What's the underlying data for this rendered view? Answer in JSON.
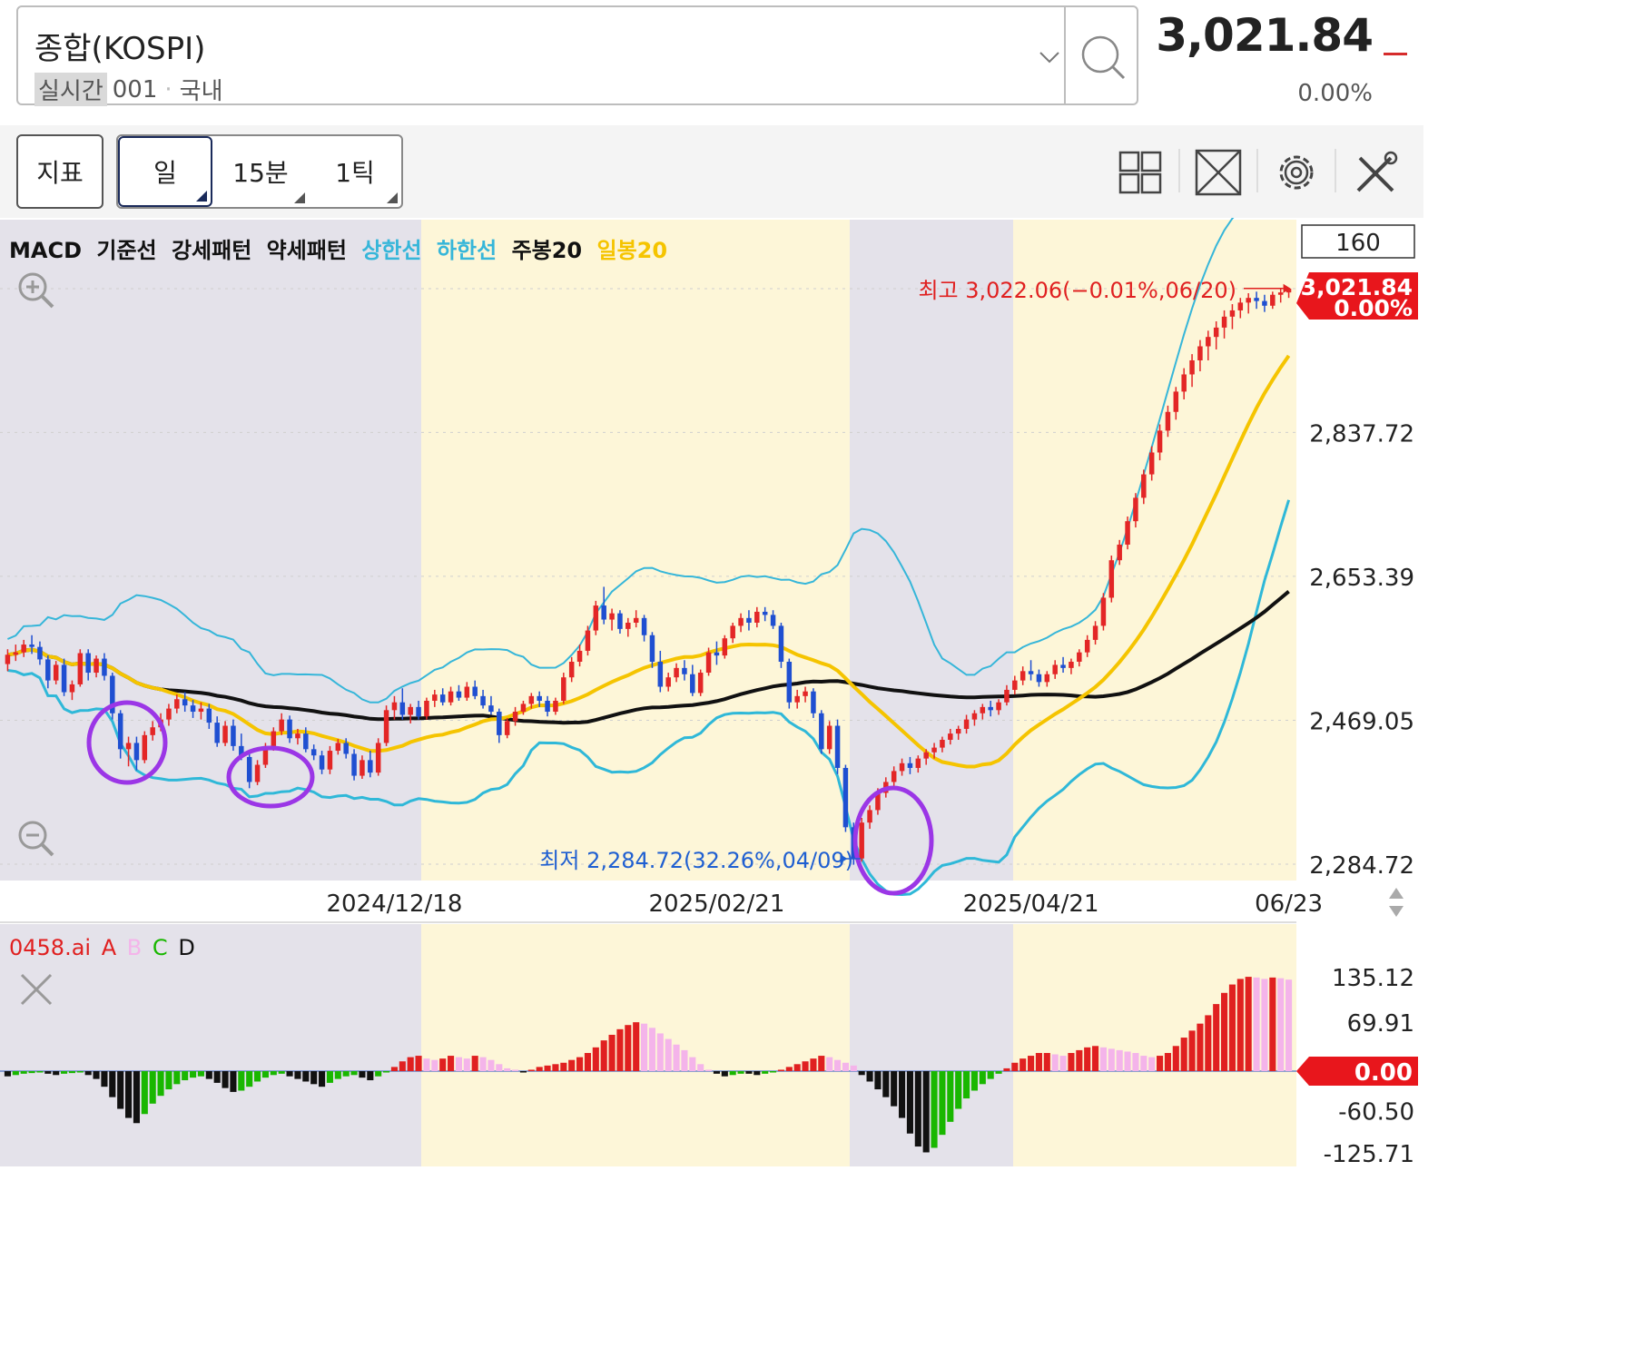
{
  "symbol": {
    "name": "종합(KOSPI)",
    "realtime_label": "실시간",
    "code": "001",
    "market": "국내",
    "price": "3,021.84",
    "change_pct": "0.00%"
  },
  "toolbar": {
    "indicator_label": "지표",
    "timeframes": [
      {
        "label": "일",
        "selected": true
      },
      {
        "label": "15분",
        "selected": false
      },
      {
        "label": "1틱",
        "selected": false
      }
    ],
    "tools": [
      "grid-layout-icon",
      "fullscreen-icon",
      "settings-gear-icon",
      "tools-icon"
    ]
  },
  "legend": [
    {
      "label": "MACD",
      "color": "#111111"
    },
    {
      "label": "기준선",
      "color": "#111111"
    },
    {
      "label": "강세패턴",
      "color": "#111111"
    },
    {
      "label": "약세패턴",
      "color": "#111111"
    },
    {
      "label": "상한선",
      "color": "#36b6d9"
    },
    {
      "label": "하한선",
      "color": "#36b6d9"
    },
    {
      "label": "주봉20",
      "color": "#111111"
    },
    {
      "label": "일봉20",
      "color": "#f5c400"
    }
  ],
  "sub_legend": [
    {
      "label": "0458.ai",
      "color": "#e02020"
    },
    {
      "label": "A",
      "color": "#e02020"
    },
    {
      "label": "B",
      "color": "#f4b4ea"
    },
    {
      "label": "C",
      "color": "#19b700"
    },
    {
      "label": "D",
      "color": "#111111"
    }
  ],
  "chart_data": [
    {
      "type": "candlestick",
      "view_count_label": "160",
      "y_ticks": [
        2837.72,
        2653.39,
        2469.05,
        2284.72
      ],
      "y_tick_labels": [
        "2,837.72",
        "2,653.39",
        "2,469.05",
        "2,284.72"
      ],
      "ylim": [
        2284.72,
        3021.84
      ],
      "x_tick_labels": [
        {
          "label": "2024/12/18",
          "index": 48
        },
        {
          "label": "2025/02/21",
          "index": 88
        },
        {
          "label": "2025/04/21",
          "index": 127
        },
        {
          "label": "06/23",
          "index": 159
        }
      ],
      "last_price": {
        "label": "3,021.84",
        "pct": "0.00%",
        "value": 3021.84
      },
      "high_annotation": {
        "text": "최고 3,022.06(−0.01%,06/20)",
        "value": 3022.06
      },
      "low_annotation": {
        "text": "최저 2,284.72(32.26%,04/09)",
        "value": 2284.72
      },
      "colors": {
        "up": "#e32626",
        "down": "#1f4fd1",
        "weekly20": "#111111",
        "daily20": "#f5c400",
        "band": "#36b6d9",
        "band_low": "#2fb8d8",
        "shade_gray": "#e4e2ea",
        "shade_yellow": "#fdf6d8",
        "circle": "#9b36e6"
      },
      "ohlc": [
        [
          2541,
          2560,
          2532,
          2553
        ],
        [
          2553,
          2566,
          2545,
          2556
        ],
        [
          2556,
          2572,
          2550,
          2566
        ],
        [
          2566,
          2578,
          2554,
          2563
        ],
        [
          2563,
          2570,
          2540,
          2547
        ],
        [
          2547,
          2552,
          2510,
          2520
        ],
        [
          2520,
          2545,
          2515,
          2540
        ],
        [
          2540,
          2548,
          2500,
          2505
        ],
        [
          2505,
          2520,
          2495,
          2515
        ],
        [
          2515,
          2560,
          2512,
          2555
        ],
        [
          2555,
          2560,
          2520,
          2530
        ],
        [
          2530,
          2552,
          2524,
          2548
        ],
        [
          2548,
          2555,
          2520,
          2526
        ],
        [
          2526,
          2530,
          2470,
          2478
        ],
        [
          2478,
          2482,
          2420,
          2432
        ],
        [
          2432,
          2448,
          2410,
          2440
        ],
        [
          2440,
          2448,
          2405,
          2418
        ],
        [
          2418,
          2455,
          2414,
          2450
        ],
        [
          2450,
          2468,
          2443,
          2460
        ],
        [
          2460,
          2478,
          2455,
          2470
        ],
        [
          2470,
          2490,
          2462,
          2484
        ],
        [
          2484,
          2502,
          2478,
          2496
        ],
        [
          2496,
          2505,
          2480,
          2488
        ],
        [
          2488,
          2495,
          2472,
          2480
        ],
        [
          2480,
          2492,
          2470,
          2484
        ],
        [
          2484,
          2490,
          2458,
          2466
        ],
        [
          2466,
          2474,
          2435,
          2440
        ],
        [
          2440,
          2468,
          2436,
          2462
        ],
        [
          2462,
          2470,
          2430,
          2436
        ],
        [
          2436,
          2452,
          2418,
          2422
        ],
        [
          2422,
          2428,
          2382,
          2390
        ],
        [
          2390,
          2418,
          2386,
          2412
        ],
        [
          2412,
          2440,
          2408,
          2436
        ],
        [
          2436,
          2460,
          2430,
          2455
        ],
        [
          2455,
          2478,
          2450,
          2470
        ],
        [
          2470,
          2475,
          2440,
          2446
        ],
        [
          2446,
          2458,
          2438,
          2452
        ],
        [
          2452,
          2460,
          2428,
          2432
        ],
        [
          2432,
          2438,
          2418,
          2424
        ],
        [
          2424,
          2430,
          2400,
          2406
        ],
        [
          2406,
          2436,
          2400,
          2430
        ],
        [
          2430,
          2445,
          2425,
          2440
        ],
        [
          2440,
          2446,
          2420,
          2426
        ],
        [
          2426,
          2432,
          2392,
          2398
        ],
        [
          2398,
          2424,
          2394,
          2418
        ],
        [
          2418,
          2430,
          2396,
          2402
        ],
        [
          2402,
          2446,
          2398,
          2440
        ],
        [
          2440,
          2488,
          2436,
          2482
        ],
        [
          2482,
          2500,
          2470,
          2492
        ],
        [
          2492,
          2510,
          2470,
          2476
        ],
        [
          2476,
          2490,
          2465,
          2486
        ],
        [
          2486,
          2494,
          2470,
          2474
        ],
        [
          2474,
          2498,
          2470,
          2494
        ],
        [
          2494,
          2508,
          2486,
          2502
        ],
        [
          2502,
          2510,
          2488,
          2492
        ],
        [
          2492,
          2512,
          2488,
          2506
        ],
        [
          2506,
          2514,
          2494,
          2498
        ],
        [
          2498,
          2518,
          2494,
          2512
        ],
        [
          2512,
          2520,
          2496,
          2500
        ],
        [
          2500,
          2508,
          2484,
          2488
        ],
        [
          2488,
          2500,
          2476,
          2480
        ],
        [
          2480,
          2484,
          2440,
          2450
        ],
        [
          2450,
          2472,
          2446,
          2468
        ],
        [
          2468,
          2486,
          2462,
          2480
        ],
        [
          2480,
          2494,
          2476,
          2490
        ],
        [
          2490,
          2504,
          2484,
          2500
        ],
        [
          2500,
          2506,
          2486,
          2494
        ],
        [
          2494,
          2500,
          2474,
          2480
        ],
        [
          2480,
          2498,
          2476,
          2494
        ],
        [
          2494,
          2530,
          2490,
          2524
        ],
        [
          2524,
          2550,
          2518,
          2544
        ],
        [
          2544,
          2566,
          2538,
          2558
        ],
        [
          2558,
          2590,
          2552,
          2584
        ],
        [
          2584,
          2622,
          2578,
          2616
        ],
        [
          2616,
          2640,
          2592,
          2598
        ],
        [
          2598,
          2612,
          2584,
          2606
        ],
        [
          2606,
          2610,
          2580,
          2586
        ],
        [
          2586,
          2600,
          2576,
          2594
        ],
        [
          2594,
          2610,
          2588,
          2600
        ],
        [
          2600,
          2604,
          2570,
          2578
        ],
        [
          2578,
          2582,
          2536,
          2544
        ],
        [
          2544,
          2558,
          2505,
          2512
        ],
        [
          2512,
          2530,
          2506,
          2524
        ],
        [
          2524,
          2542,
          2518,
          2536
        ],
        [
          2536,
          2546,
          2520,
          2528
        ],
        [
          2528,
          2540,
          2500,
          2504
        ],
        [
          2504,
          2534,
          2500,
          2530
        ],
        [
          2530,
          2562,
          2526,
          2556
        ],
        [
          2556,
          2570,
          2540,
          2552
        ],
        [
          2552,
          2578,
          2548,
          2574
        ],
        [
          2574,
          2594,
          2568,
          2590
        ],
        [
          2590,
          2606,
          2582,
          2600
        ],
        [
          2600,
          2610,
          2584,
          2594
        ],
        [
          2594,
          2614,
          2588,
          2608
        ],
        [
          2608,
          2614,
          2596,
          2604
        ],
        [
          2604,
          2610,
          2586,
          2590
        ],
        [
          2590,
          2594,
          2536,
          2544
        ],
        [
          2544,
          2548,
          2484,
          2492
        ],
        [
          2492,
          2508,
          2484,
          2500
        ],
        [
          2500,
          2512,
          2492,
          2506
        ],
        [
          2506,
          2510,
          2472,
          2478
        ],
        [
          2478,
          2482,
          2426,
          2432
        ],
        [
          2432,
          2468,
          2426,
          2462
        ],
        [
          2462,
          2470,
          2400,
          2408
        ],
        [
          2408,
          2412,
          2326,
          2332
        ],
        [
          2332,
          2338,
          2284,
          2292
        ],
        [
          2292,
          2344,
          2288,
          2338
        ],
        [
          2338,
          2360,
          2330,
          2354
        ],
        [
          2354,
          2382,
          2348,
          2376
        ],
        [
          2376,
          2396,
          2370,
          2390
        ],
        [
          2390,
          2410,
          2384,
          2404
        ],
        [
          2404,
          2420,
          2398,
          2414
        ],
        [
          2414,
          2422,
          2400,
          2408
        ],
        [
          2408,
          2424,
          2402,
          2420
        ],
        [
          2420,
          2432,
          2412,
          2428
        ],
        [
          2428,
          2440,
          2420,
          2434
        ],
        [
          2434,
          2448,
          2428,
          2444
        ],
        [
          2444,
          2458,
          2438,
          2452
        ],
        [
          2452,
          2462,
          2444,
          2458
        ],
        [
          2458,
          2476,
          2452,
          2470
        ],
        [
          2470,
          2482,
          2462,
          2478
        ],
        [
          2478,
          2490,
          2470,
          2486
        ],
        [
          2486,
          2494,
          2474,
          2482
        ],
        [
          2482,
          2496,
          2476,
          2492
        ],
        [
          2492,
          2514,
          2488,
          2508
        ],
        [
          2508,
          2526,
          2502,
          2520
        ],
        [
          2520,
          2538,
          2514,
          2532
        ],
        [
          2532,
          2546,
          2520,
          2528
        ],
        [
          2528,
          2534,
          2512,
          2518
        ],
        [
          2518,
          2532,
          2512,
          2528
        ],
        [
          2528,
          2546,
          2522,
          2540
        ],
        [
          2540,
          2550,
          2530,
          2536
        ],
        [
          2536,
          2548,
          2528,
          2544
        ],
        [
          2544,
          2560,
          2538,
          2556
        ],
        [
          2556,
          2578,
          2550,
          2572
        ],
        [
          2572,
          2596,
          2566,
          2590
        ],
        [
          2590,
          2632,
          2584,
          2626
        ],
        [
          2626,
          2680,
          2620,
          2674
        ],
        [
          2674,
          2700,
          2668,
          2694
        ],
        [
          2694,
          2730,
          2688,
          2724
        ],
        [
          2724,
          2760,
          2716,
          2754
        ],
        [
          2754,
          2790,
          2746,
          2784
        ],
        [
          2784,
          2820,
          2776,
          2812
        ],
        [
          2812,
          2848,
          2802,
          2840
        ],
        [
          2840,
          2872,
          2832,
          2864
        ],
        [
          2864,
          2896,
          2854,
          2890
        ],
        [
          2890,
          2920,
          2880,
          2912
        ],
        [
          2912,
          2938,
          2896,
          2930
        ],
        [
          2930,
          2956,
          2916,
          2948
        ],
        [
          2948,
          2968,
          2930,
          2960
        ],
        [
          2960,
          2980,
          2944,
          2972
        ],
        [
          2972,
          2994,
          2958,
          2986
        ],
        [
          2986,
          3002,
          2970,
          2994
        ],
        [
          2994,
          3010,
          2984,
          3004
        ],
        [
          3004,
          3016,
          2990,
          3010
        ],
        [
          3010,
          3018,
          2996,
          3006
        ],
        [
          3006,
          3014,
          2992,
          3000
        ],
        [
          3000,
          3018,
          2996,
          3014
        ],
        [
          3014,
          3022,
          3004,
          3017
        ],
        [
          3017,
          3022,
          3010,
          3021.84
        ]
      ]
    },
    {
      "type": "histogram",
      "y_ticks": [
        135.12,
        69.91,
        0,
        -60.5,
        -125.71
      ],
      "y_tick_labels": [
        "135.12",
        "69.91",
        "0.00",
        "-60.50",
        "-125.71"
      ],
      "ylim": [
        -125.71,
        150
      ],
      "current_label": "0.00",
      "color_keys": {
        "A": "#e02020",
        "B": "#f4b4ea",
        "C": "#19b700",
        "D": "#111111"
      },
      "values": [
        -8,
        -6,
        -4,
        -3,
        -2,
        -4,
        -6,
        -4,
        -3,
        -2,
        -6,
        -12,
        -24,
        -40,
        -58,
        -72,
        -80,
        -66,
        -50,
        -38,
        -28,
        -20,
        -14,
        -10,
        -8,
        -12,
        -18,
        -26,
        -32,
        -30,
        -24,
        -16,
        -10,
        -6,
        -4,
        -8,
        -12,
        -16,
        -20,
        -24,
        -18,
        -12,
        -8,
        -6,
        -10,
        -14,
        -8,
        -2,
        6,
        14,
        20,
        22,
        18,
        16,
        18,
        22,
        20,
        18,
        22,
        20,
        16,
        10,
        4,
        2,
        -2,
        2,
        6,
        8,
        10,
        12,
        16,
        20,
        26,
        34,
        44,
        52,
        60,
        66,
        70,
        68,
        62,
        54,
        46,
        38,
        30,
        20,
        10,
        2,
        -4,
        -8,
        -6,
        -4,
        -4,
        -6,
        -4,
        -2,
        2,
        6,
        10,
        14,
        18,
        22,
        20,
        16,
        12,
        8,
        -6,
        -16,
        -28,
        -40,
        -54,
        -72,
        -96,
        -116,
        -125,
        -118,
        -98,
        -78,
        -58,
        -42,
        -30,
        -20,
        -12,
        -4,
        4,
        12,
        18,
        22,
        26,
        26,
        24,
        22,
        26,
        30,
        34,
        36,
        34,
        32,
        30,
        28,
        26,
        22,
        20,
        22,
        26,
        36,
        48,
        58,
        68,
        80,
        96,
        112,
        124,
        132,
        135,
        134,
        132,
        134,
        133,
        131
      ]
    }
  ]
}
